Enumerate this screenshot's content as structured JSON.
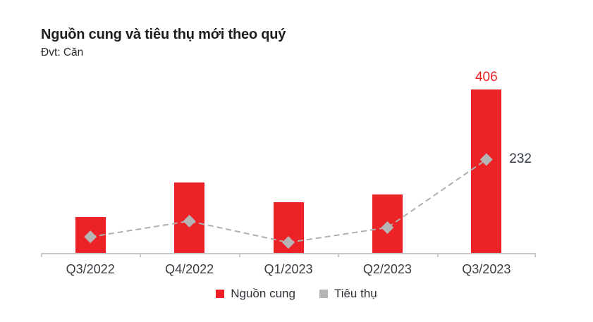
{
  "header": {
    "title": "Nguồn cung và tiêu thụ mới theo quý",
    "subtitle": "Đvt: Căn"
  },
  "chart_data": {
    "type": "bar",
    "title": "Nguồn cung và tiêu thụ mới theo quý",
    "unit_label": "Đvt: Căn",
    "categories": [
      "Q3/2022",
      "Q4/2022",
      "Q1/2023",
      "Q2/2023",
      "Q3/2023"
    ],
    "series": [
      {
        "name": "Nguồn cung",
        "type": "bar",
        "color": "#EC2227",
        "values": [
          90,
          175,
          126,
          145,
          406
        ]
      },
      {
        "name": "Tiêu thụ",
        "type": "line",
        "color": "#B5B5B5",
        "line_color": "#AFAFAF",
        "dashed": true,
        "marker": "diamond",
        "values": [
          40,
          79,
          26,
          63,
          232
        ]
      }
    ],
    "data_labels": [
      {
        "text": "406",
        "series": "Nguồn cung",
        "category": "Q3/2023",
        "color": "#EC2227"
      },
      {
        "text": "232",
        "series": "Tiêu thụ",
        "category": "Q3/2023",
        "color": "#333B44"
      }
    ],
    "xlabel": "",
    "ylabel": "",
    "ylim": [
      0,
      430
    ],
    "grid": false,
    "y_axis_visible": false,
    "legend_position": "bottom",
    "axis_color": "#C9C9C9",
    "x_tick_color": "#3A3D43"
  }
}
